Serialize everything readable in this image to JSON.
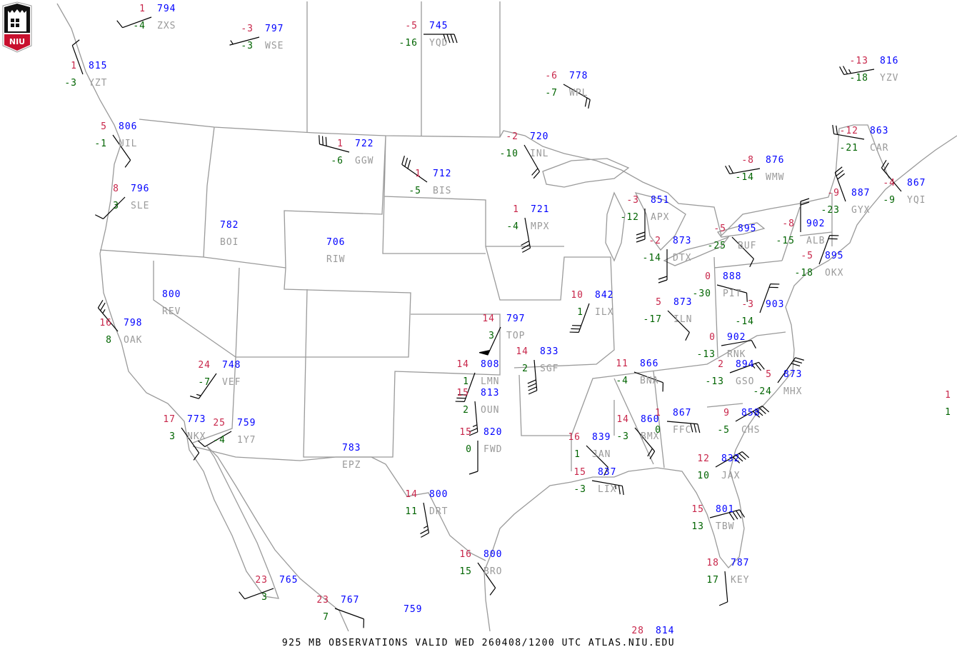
{
  "logo": {
    "text": "NIU",
    "colors": {
      "red": "#c8102e",
      "black": "#000000"
    }
  },
  "footer": {
    "title": "925 MB OBSERVATIONS VALID  WED 260408/1200 UTC  ATLAS.NIU.EDU"
  },
  "colors": {
    "temperature": "#c8264a",
    "pressure": "#0000ff",
    "dewpoint": "#006400",
    "station_id": "#9a9a9a",
    "map_lines": "#9a9a9a",
    "wind_barb": "#000000"
  },
  "stations": [
    {
      "id": "ZXS",
      "temp": "1",
      "dewpoint": "-4",
      "height": "794",
      "wind_dir": 250,
      "wind_kt": 10
    },
    {
      "id": "WSE",
      "temp": "-3",
      "dewpoint": "-3",
      "height": "797",
      "wind_dir": 255,
      "wind_kt": 3
    },
    {
      "id": "YQD",
      "temp": "-5",
      "dewpoint": "-16",
      "height": "745",
      "wind_dir": 90,
      "wind_kt": 40
    },
    {
      "id": "YZT",
      "temp": "1",
      "dewpoint": "-3",
      "height": "815",
      "wind_dir": 340,
      "wind_kt": 10
    },
    {
      "id": "UIL",
      "temp": "5",
      "dewpoint": "-1",
      "height": "806",
      "wind_dir": 145,
      "wind_kt": 10
    },
    {
      "id": "SLE",
      "temp": "8",
      "dewpoint": "3",
      "height": "796",
      "wind_dir": 225,
      "wind_kt": 10
    },
    {
      "id": "BOI",
      "temp": "",
      "dewpoint": "",
      "height": "782",
      "wind_dir": null,
      "wind_kt": null
    },
    {
      "id": "RIW",
      "temp": "",
      "dewpoint": "",
      "height": "706",
      "wind_dir": null,
      "wind_kt": null
    },
    {
      "id": "REV",
      "temp": "",
      "dewpoint": "",
      "height": "800",
      "wind_dir": null,
      "wind_kt": null
    },
    {
      "id": "OAK",
      "temp": "16",
      "dewpoint": "8",
      "height": "798",
      "wind_dir": 320,
      "wind_kt": 25
    },
    {
      "id": "VEF",
      "temp": "24",
      "dewpoint": "-7",
      "height": "748",
      "wind_dir": 215,
      "wind_kt": 15
    },
    {
      "id": "NKX",
      "temp": "17",
      "dewpoint": "3",
      "height": "773",
      "wind_dir": 145,
      "wind_kt": 10
    },
    {
      "id": "1Y7",
      "temp": "25",
      "dewpoint": "-4",
      "height": "759",
      "wind_dir": 240,
      "wind_kt": 10
    },
    {
      "id": "GGW",
      "temp": "1",
      "dewpoint": "-6",
      "height": "722",
      "wind_dir": 285,
      "wind_kt": 30
    },
    {
      "id": "BIS",
      "temp": "1",
      "dewpoint": "-5",
      "height": "712",
      "wind_dir": 305,
      "wind_kt": 30
    },
    {
      "id": "WPL",
      "temp": "-6",
      "dewpoint": "-7",
      "height": "778",
      "wind_dir": 120,
      "wind_kt": 20
    },
    {
      "id": "INL",
      "temp": "-2",
      "dewpoint": "-10",
      "height": "720",
      "wind_dir": 150,
      "wind_kt": 20
    },
    {
      "id": "MPX",
      "temp": "1",
      "dewpoint": "-4",
      "height": "721",
      "wind_dir": 170,
      "wind_kt": 30
    },
    {
      "id": "APX",
      "temp": "-3",
      "dewpoint": "-12",
      "height": "851",
      "wind_dir": 180,
      "wind_kt": 30
    },
    {
      "id": "DTX",
      "temp": "-2",
      "dewpoint": "-14",
      "height": "873",
      "wind_dir": 180,
      "wind_kt": 20
    },
    {
      "id": "BUF",
      "temp": "-5",
      "dewpoint": "-25",
      "height": "895",
      "wind_dir": 135,
      "wind_kt": 10
    },
    {
      "id": "WMW",
      "temp": "-8",
      "dewpoint": "-14",
      "height": "876",
      "wind_dir": 260,
      "wind_kt": 20
    },
    {
      "id": "YZV",
      "temp": "-13",
      "dewpoint": "-18",
      "height": "816",
      "wind_dir": 260,
      "wind_kt": 25
    },
    {
      "id": "CAR",
      "temp": "-12",
      "dewpoint": "-21",
      "height": "863",
      "wind_dir": 280,
      "wind_kt": 20
    },
    {
      "id": "YQI",
      "temp": "-4",
      "dewpoint": "-9",
      "height": "867",
      "wind_dir": 320,
      "wind_kt": 20
    },
    {
      "id": "GYX",
      "temp": "-9",
      "dewpoint": "-23",
      "height": "887",
      "wind_dir": 340,
      "wind_kt": 30
    },
    {
      "id": "ALB",
      "temp": "-8",
      "dewpoint": "-15",
      "height": "902",
      "wind_dir": 360,
      "wind_kt": 20
    },
    {
      "id": "OKX",
      "temp": "-5",
      "dewpoint": "-18",
      "height": "895",
      "wind_dir": 20,
      "wind_kt": 20
    },
    {
      "id": "PIT",
      "temp": "0",
      "dewpoint": "-30",
      "height": "888",
      "wind_dir": 105,
      "wind_kt": 10
    },
    {
      "id": "",
      "temp": "-3",
      "dewpoint": "-14",
      "height": "903",
      "wind_dir": 20,
      "wind_kt": 20
    },
    {
      "id": "ILN",
      "temp": "5",
      "dewpoint": "-17",
      "height": "873",
      "wind_dir": 135,
      "wind_kt": 10
    },
    {
      "id": "ILX",
      "temp": "10",
      "dewpoint": "1",
      "height": "842",
      "wind_dir": 200,
      "wind_kt": 30
    },
    {
      "id": "TOP",
      "temp": "14",
      "dewpoint": "3",
      "height": "797",
      "wind_dir": 205,
      "wind_kt": 50
    },
    {
      "id": "SGF",
      "temp": "14",
      "dewpoint": "2",
      "height": "833",
      "wind_dir": 175,
      "wind_kt": 40
    },
    {
      "id": "LMN",
      "temp": "14",
      "dewpoint": "1",
      "height": "808",
      "wind_dir": 200,
      "wind_kt": 30
    },
    {
      "id": "OUN",
      "temp": "15",
      "dewpoint": "2",
      "height": "813",
      "wind_dir": 175,
      "wind_kt": 25
    },
    {
      "id": "FWD",
      "temp": "15",
      "dewpoint": "0",
      "height": "820",
      "wind_dir": 180,
      "wind_kt": 10
    },
    {
      "id": "RNK",
      "temp": "0",
      "dewpoint": "-13",
      "height": "902",
      "wind_dir": 80,
      "wind_kt": 10
    },
    {
      "id": "GSO",
      "temp": "2",
      "dewpoint": "-13",
      "height": "894",
      "wind_dir": 70,
      "wind_kt": 25
    },
    {
      "id": "BNA",
      "temp": "11",
      "dewpoint": "-4",
      "height": "866",
      "wind_dir": 110,
      "wind_kt": 10
    },
    {
      "id": "MHX",
      "temp": "5",
      "dewpoint": "-24",
      "height": "873",
      "wind_dir": 35,
      "wind_kt": 30
    },
    {
      "id": "BMX",
      "temp": "14",
      "dewpoint": "-3",
      "height": "860",
      "wind_dir": 140,
      "wind_kt": 20
    },
    {
      "id": "FFC",
      "temp": "1",
      "dewpoint": "0",
      "height": "867",
      "wind_dir": 95,
      "wind_kt": 30
    },
    {
      "id": "CHS",
      "temp": "9",
      "dewpoint": "-5",
      "height": "858",
      "wind_dir": 60,
      "wind_kt": 40
    },
    {
      "id": "JAN",
      "temp": "16",
      "dewpoint": "1",
      "height": "839",
      "wind_dir": 135,
      "wind_kt": 10
    },
    {
      "id": "LIX",
      "temp": "15",
      "dewpoint": "-3",
      "height": "837",
      "wind_dir": 100,
      "wind_kt": 25
    },
    {
      "id": "JAX",
      "temp": "12",
      "dewpoint": "10",
      "height": "832",
      "wind_dir": 60,
      "wind_kt": 40
    },
    {
      "id": "TBW",
      "temp": "15",
      "dewpoint": "13",
      "height": "801",
      "wind_dir": 75,
      "wind_kt": 40
    },
    {
      "id": "KEY",
      "temp": "18",
      "dewpoint": "17",
      "height": "787",
      "wind_dir": 175,
      "wind_kt": 10
    },
    {
      "id": "EPZ",
      "temp": "",
      "dewpoint": "",
      "height": "783",
      "wind_dir": null,
      "wind_kt": null
    },
    {
      "id": "DRT",
      "temp": "14",
      "dewpoint": "11",
      "height": "800",
      "wind_dir": 170,
      "wind_kt": 25
    },
    {
      "id": "BRO",
      "temp": "16",
      "dewpoint": "15",
      "height": "800",
      "wind_dir": 145,
      "wind_kt": 10
    },
    {
      "id": "",
      "temp": "23",
      "dewpoint": "3",
      "height": "765",
      "wind_dir": 250,
      "wind_kt": 10
    },
    {
      "id": "",
      "temp": "23",
      "dewpoint": "7",
      "height": "767",
      "wind_dir": 110,
      "wind_kt": 10
    },
    {
      "id": "",
      "temp": "",
      "dewpoint": "",
      "height": "759",
      "wind_dir": null,
      "wind_kt": null
    },
    {
      "id": "",
      "temp": "28",
      "dewpoint": "",
      "height": "814",
      "wind_dir": null,
      "wind_kt": null
    },
    {
      "id": "",
      "temp": "1",
      "dewpoint": "1",
      "height": "",
      "wind_dir": null,
      "wind_kt": null
    }
  ]
}
